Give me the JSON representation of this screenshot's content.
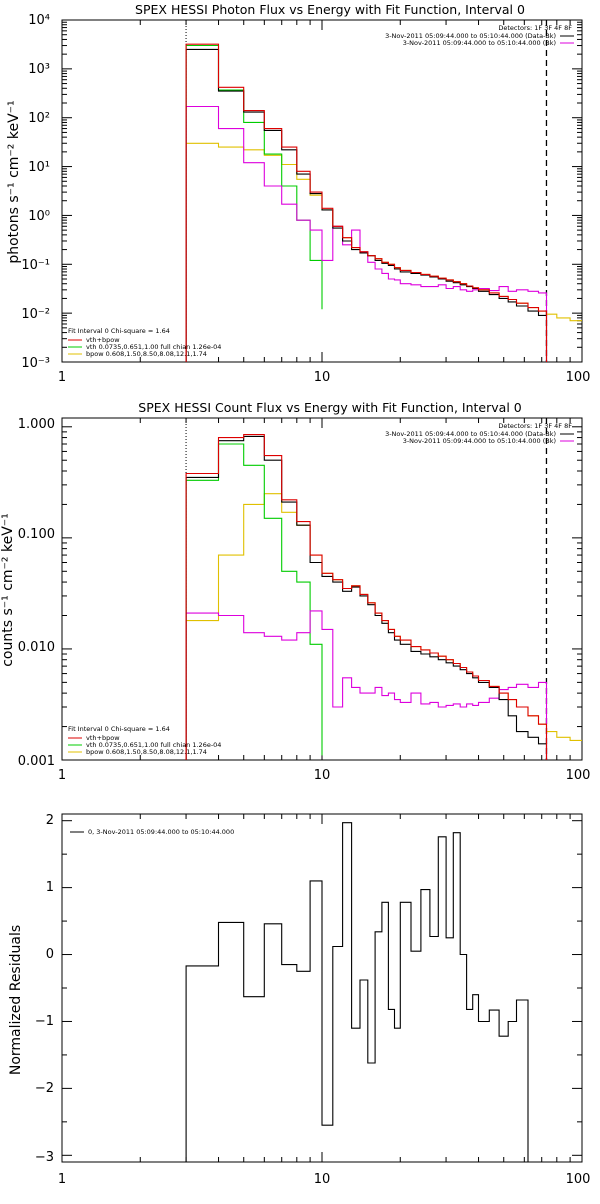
{
  "colors": {
    "data": "#000000",
    "total": "#dd0000",
    "vth": "#00cc00",
    "bpow": "#e0c000",
    "background": "#dd00dd"
  },
  "chart_data": [
    {
      "type": "line",
      "name": "photon",
      "title": "SPEX HESSI Photon Flux vs Energy with Fit Function, Interval 0",
      "xlabel": "",
      "ylabel": "photons s⁻¹ cm⁻² keV⁻¹",
      "xscale": "log",
      "yscale": "log",
      "xlim": [
        1,
        100
      ],
      "ylim": [
        0.001,
        10000
      ],
      "x_ticks": [
        "1",
        "10",
        "100"
      ],
      "y_ticks": [
        "10⁻³",
        "10⁻²",
        "10⁻¹",
        "10⁰",
        "10¹",
        "10²",
        "10³",
        "10⁴"
      ],
      "fit_lower_keV": 3,
      "fit_upper_keV": 73,
      "legend_top": {
        "header": "Detectors: 1F 3F 4F 8F",
        "entries": [
          "3-Nov-2011 05:09:44.000 to 05:10:44.000 (Data-Bk)",
          "3-Nov-2011 05:09:44.000 to 05:10:44.000 (Bk)"
        ]
      },
      "legend_bottom": {
        "header": "Fit Interval 0   Chi-square = 1.64",
        "entries": [
          "vth+bpow",
          "vth 0.0735,0.651,1.00  full chian 1.26e-04",
          "bpow 0.608,1.50,8.50,8.08,12.1,1.74"
        ]
      },
      "series": [
        {
          "name": "data",
          "edges": [
            3,
            4,
            5,
            6,
            7,
            8,
            9,
            10,
            11,
            12,
            13,
            14,
            15,
            16,
            17,
            18,
            19,
            20,
            22,
            24,
            26,
            28,
            30,
            32,
            34,
            36,
            38,
            40,
            44,
            48,
            52,
            56,
            62,
            68,
            73
          ],
          "values": [
            2500,
            350,
            130,
            55,
            22,
            7,
            2.8,
            1.3,
            0.55,
            0.3,
            0.2,
            0.17,
            0.15,
            0.12,
            0.105,
            0.095,
            0.08,
            0.07,
            0.065,
            0.06,
            0.055,
            0.05,
            0.045,
            0.042,
            0.038,
            0.035,
            0.032,
            0.028,
            0.024,
            0.02,
            0.017,
            0.014,
            0.011,
            0.009
          ]
        },
        {
          "name": "vth+bpow",
          "edges": [
            3,
            4,
            5,
            6,
            7,
            8,
            9,
            10,
            11,
            12,
            13,
            14,
            15,
            16,
            17,
            18,
            19,
            20,
            22,
            24,
            26,
            28,
            30,
            32,
            34,
            36,
            38,
            40,
            44,
            48,
            52,
            56,
            62,
            68,
            73
          ],
          "values": [
            3200,
            420,
            140,
            60,
            25,
            8,
            3,
            1.4,
            0.6,
            0.35,
            0.22,
            0.18,
            0.15,
            0.13,
            0.11,
            0.1,
            0.085,
            0.075,
            0.068,
            0.062,
            0.057,
            0.052,
            0.048,
            0.044,
            0.04,
            0.036,
            0.033,
            0.03,
            0.026,
            0.022,
            0.019,
            0.016,
            0.013,
            0.011
          ]
        },
        {
          "name": "vth",
          "edges": [
            3,
            4,
            5,
            6,
            7,
            8,
            9,
            10
          ],
          "values": [
            3000,
            370,
            80,
            18,
            4,
            0.8,
            0.12,
            0.012
          ]
        },
        {
          "name": "bpow",
          "edges": [
            3,
            4,
            5,
            6,
            7,
            8,
            9,
            10,
            11,
            12,
            13,
            14,
            15,
            16,
            17,
            18,
            19,
            20,
            22,
            24,
            26,
            28,
            30,
            32,
            34,
            36,
            38,
            40,
            44,
            48,
            52,
            56,
            62,
            68,
            73,
            80,
            90,
            100
          ],
          "values": [
            30,
            25,
            22,
            17,
            11,
            5.5,
            2.6,
            1.3,
            0.6,
            0.35,
            0.22,
            0.18,
            0.15,
            0.13,
            0.11,
            0.1,
            0.085,
            0.075,
            0.068,
            0.062,
            0.057,
            0.052,
            0.048,
            0.044,
            0.04,
            0.036,
            0.033,
            0.03,
            0.026,
            0.022,
            0.019,
            0.016,
            0.013,
            0.011,
            0.0095,
            0.008,
            0.007
          ]
        },
        {
          "name": "background",
          "edges": [
            3,
            4,
            5,
            6,
            7,
            8,
            9,
            10,
            11,
            12,
            13,
            14,
            15,
            16,
            17,
            18,
            19,
            20,
            22,
            24,
            26,
            28,
            30,
            32,
            34,
            36,
            38,
            40,
            44,
            48,
            52,
            56,
            62,
            68,
            73
          ],
          "values": [
            170,
            60,
            12,
            4,
            1.7,
            0.8,
            0.5,
            0.12,
            0.6,
            0.25,
            0.5,
            0.18,
            0.11,
            0.08,
            0.065,
            0.05,
            0.048,
            0.04,
            0.038,
            0.035,
            0.035,
            0.038,
            0.032,
            0.035,
            0.03,
            0.028,
            0.03,
            0.032,
            0.029,
            0.035,
            0.028,
            0.03,
            0.028,
            0.026
          ]
        }
      ]
    },
    {
      "type": "line",
      "name": "count",
      "title": "SPEX HESSI Count Flux vs Energy with Fit Function, Interval 0",
      "xlabel": "",
      "ylabel": "counts s⁻¹ cm⁻² keV⁻¹",
      "xscale": "log",
      "yscale": "log",
      "xlim": [
        1,
        100
      ],
      "ylim": [
        0.001,
        1.2
      ],
      "x_ticks": [
        "1",
        "10",
        "100"
      ],
      "y_ticks": [
        "0.001",
        "0.010",
        "0.100",
        "1.000"
      ],
      "fit_lower_keV": 3,
      "fit_upper_keV": 73,
      "legend_top": {
        "header": "Detectors: 1F 3F 4F 8F",
        "entries": [
          "3-Nov-2011 05:09:44.000 to 05:10:44.000 (Data-Bk)",
          "3-Nov-2011 05:09:44.000 to 05:10:44.000 (Bk)"
        ]
      },
      "legend_bottom": {
        "header": "Fit Interval 0   Chi-square = 1.64",
        "entries": [
          "vth+bpow",
          "vth 0.0735,0.651,1.00  full chian 1.26e-04",
          "bpow 0.608,1.50,8.50,8.08,12.1,1.74"
        ]
      },
      "series": [
        {
          "name": "data",
          "edges": [
            3,
            4,
            5,
            6,
            7,
            8,
            9,
            10,
            11,
            12,
            13,
            14,
            15,
            16,
            17,
            18,
            19,
            20,
            22,
            24,
            26,
            28,
            30,
            32,
            34,
            36,
            38,
            40,
            44,
            48,
            52,
            56,
            62,
            68,
            73
          ],
          "values": [
            0.35,
            0.75,
            0.82,
            0.5,
            0.21,
            0.13,
            0.06,
            0.045,
            0.04,
            0.033,
            0.036,
            0.03,
            0.025,
            0.02,
            0.017,
            0.014,
            0.012,
            0.011,
            0.0095,
            0.009,
            0.0085,
            0.008,
            0.0075,
            0.007,
            0.0065,
            0.006,
            0.0055,
            0.005,
            0.0045,
            0.0035,
            0.0025,
            0.0018,
            0.0016,
            0.0014
          ]
        },
        {
          "name": "vth+bpow",
          "edges": [
            3,
            4,
            5,
            6,
            7,
            8,
            9,
            10,
            11,
            12,
            13,
            14,
            15,
            16,
            17,
            18,
            19,
            20,
            22,
            24,
            26,
            28,
            30,
            32,
            34,
            36,
            38,
            40,
            44,
            48,
            52,
            56,
            62,
            68,
            73
          ],
          "values": [
            0.38,
            0.8,
            0.85,
            0.55,
            0.22,
            0.14,
            0.07,
            0.048,
            0.042,
            0.035,
            0.037,
            0.031,
            0.026,
            0.021,
            0.018,
            0.015,
            0.013,
            0.012,
            0.0105,
            0.0098,
            0.0092,
            0.0086,
            0.008,
            0.0074,
            0.0068,
            0.0062,
            0.0057,
            0.0052,
            0.0046,
            0.004,
            0.0035,
            0.003,
            0.0025,
            0.0021
          ]
        },
        {
          "name": "vth",
          "edges": [
            3,
            4,
            5,
            6,
            7,
            8,
            9,
            10
          ],
          "values": [
            0.33,
            0.7,
            0.45,
            0.15,
            0.05,
            0.04,
            0.011,
            0.0011
          ]
        },
        {
          "name": "bpow",
          "edges": [
            3,
            4,
            5,
            6,
            7,
            8,
            9,
            10,
            11,
            12,
            13,
            14,
            15,
            16,
            17,
            18,
            19,
            20,
            22,
            24,
            26,
            28,
            30,
            32,
            34,
            36,
            38,
            40,
            44,
            48,
            52,
            56,
            62,
            68,
            73,
            80,
            90,
            100
          ],
          "values": [
            0.018,
            0.07,
            0.2,
            0.25,
            0.17,
            0.13,
            0.07,
            0.048,
            0.042,
            0.035,
            0.037,
            0.031,
            0.026,
            0.021,
            0.018,
            0.015,
            0.013,
            0.012,
            0.0105,
            0.0098,
            0.0092,
            0.0086,
            0.008,
            0.0074,
            0.0068,
            0.0062,
            0.0057,
            0.0052,
            0.0046,
            0.004,
            0.0035,
            0.003,
            0.0025,
            0.0021,
            0.0018,
            0.0016,
            0.0015
          ]
        },
        {
          "name": "background",
          "edges": [
            3,
            4,
            5,
            6,
            7,
            8,
            9,
            10,
            11,
            12,
            13,
            14,
            15,
            16,
            17,
            18,
            19,
            20,
            22,
            24,
            26,
            28,
            30,
            32,
            34,
            36,
            38,
            40,
            44,
            48,
            52,
            56,
            62,
            68,
            73
          ],
          "values": [
            0.021,
            0.02,
            0.014,
            0.013,
            0.012,
            0.014,
            0.022,
            0.015,
            0.003,
            0.0055,
            0.0045,
            0.004,
            0.004,
            0.0045,
            0.0038,
            0.004,
            0.0035,
            0.0033,
            0.004,
            0.0032,
            0.0033,
            0.003,
            0.0031,
            0.0032,
            0.003,
            0.0032,
            0.0031,
            0.0033,
            0.0036,
            0.0043,
            0.0045,
            0.0048,
            0.0045,
            0.005
          ]
        }
      ]
    },
    {
      "type": "line",
      "name": "residuals",
      "title": "",
      "xlabel": "",
      "ylabel": "Normalized Residuals",
      "xscale": "log",
      "yscale": "linear",
      "xlim": [
        1,
        100
      ],
      "ylim": [
        -3.1,
        2.1
      ],
      "x_ticks": [
        "1",
        "10",
        "100"
      ],
      "y_ticks": [
        "−3",
        "−2",
        "−1",
        "0",
        "1",
        "2"
      ],
      "legend": {
        "entries": [
          "0, 3-Nov-2011 05:09:44.000 to 05:10:44.000"
        ]
      },
      "series": [
        {
          "name": "residuals",
          "edges": [
            3,
            4,
            5,
            6,
            7,
            8,
            9,
            10,
            11,
            12,
            13,
            14,
            15,
            16,
            17,
            18,
            19,
            20,
            22,
            24,
            26,
            28,
            30,
            32,
            34,
            36,
            38,
            40,
            44,
            48,
            52,
            56,
            62,
            68,
            73
          ],
          "values": [
            -0.17,
            0.48,
            -0.63,
            0.46,
            -0.15,
            -0.25,
            1.1,
            -2.55,
            0.12,
            1.97,
            -1.1,
            -0.38,
            -1.62,
            0.34,
            0.78,
            -0.82,
            -1.1,
            0.78,
            0.05,
            0.97,
            0.27,
            1.76,
            0.25,
            1.82,
            0.0,
            -0.82,
            -0.6,
            -1.0,
            -0.83,
            -1.22,
            -1.0,
            -0.68,
            -3.1,
            -3.1
          ]
        }
      ]
    }
  ]
}
